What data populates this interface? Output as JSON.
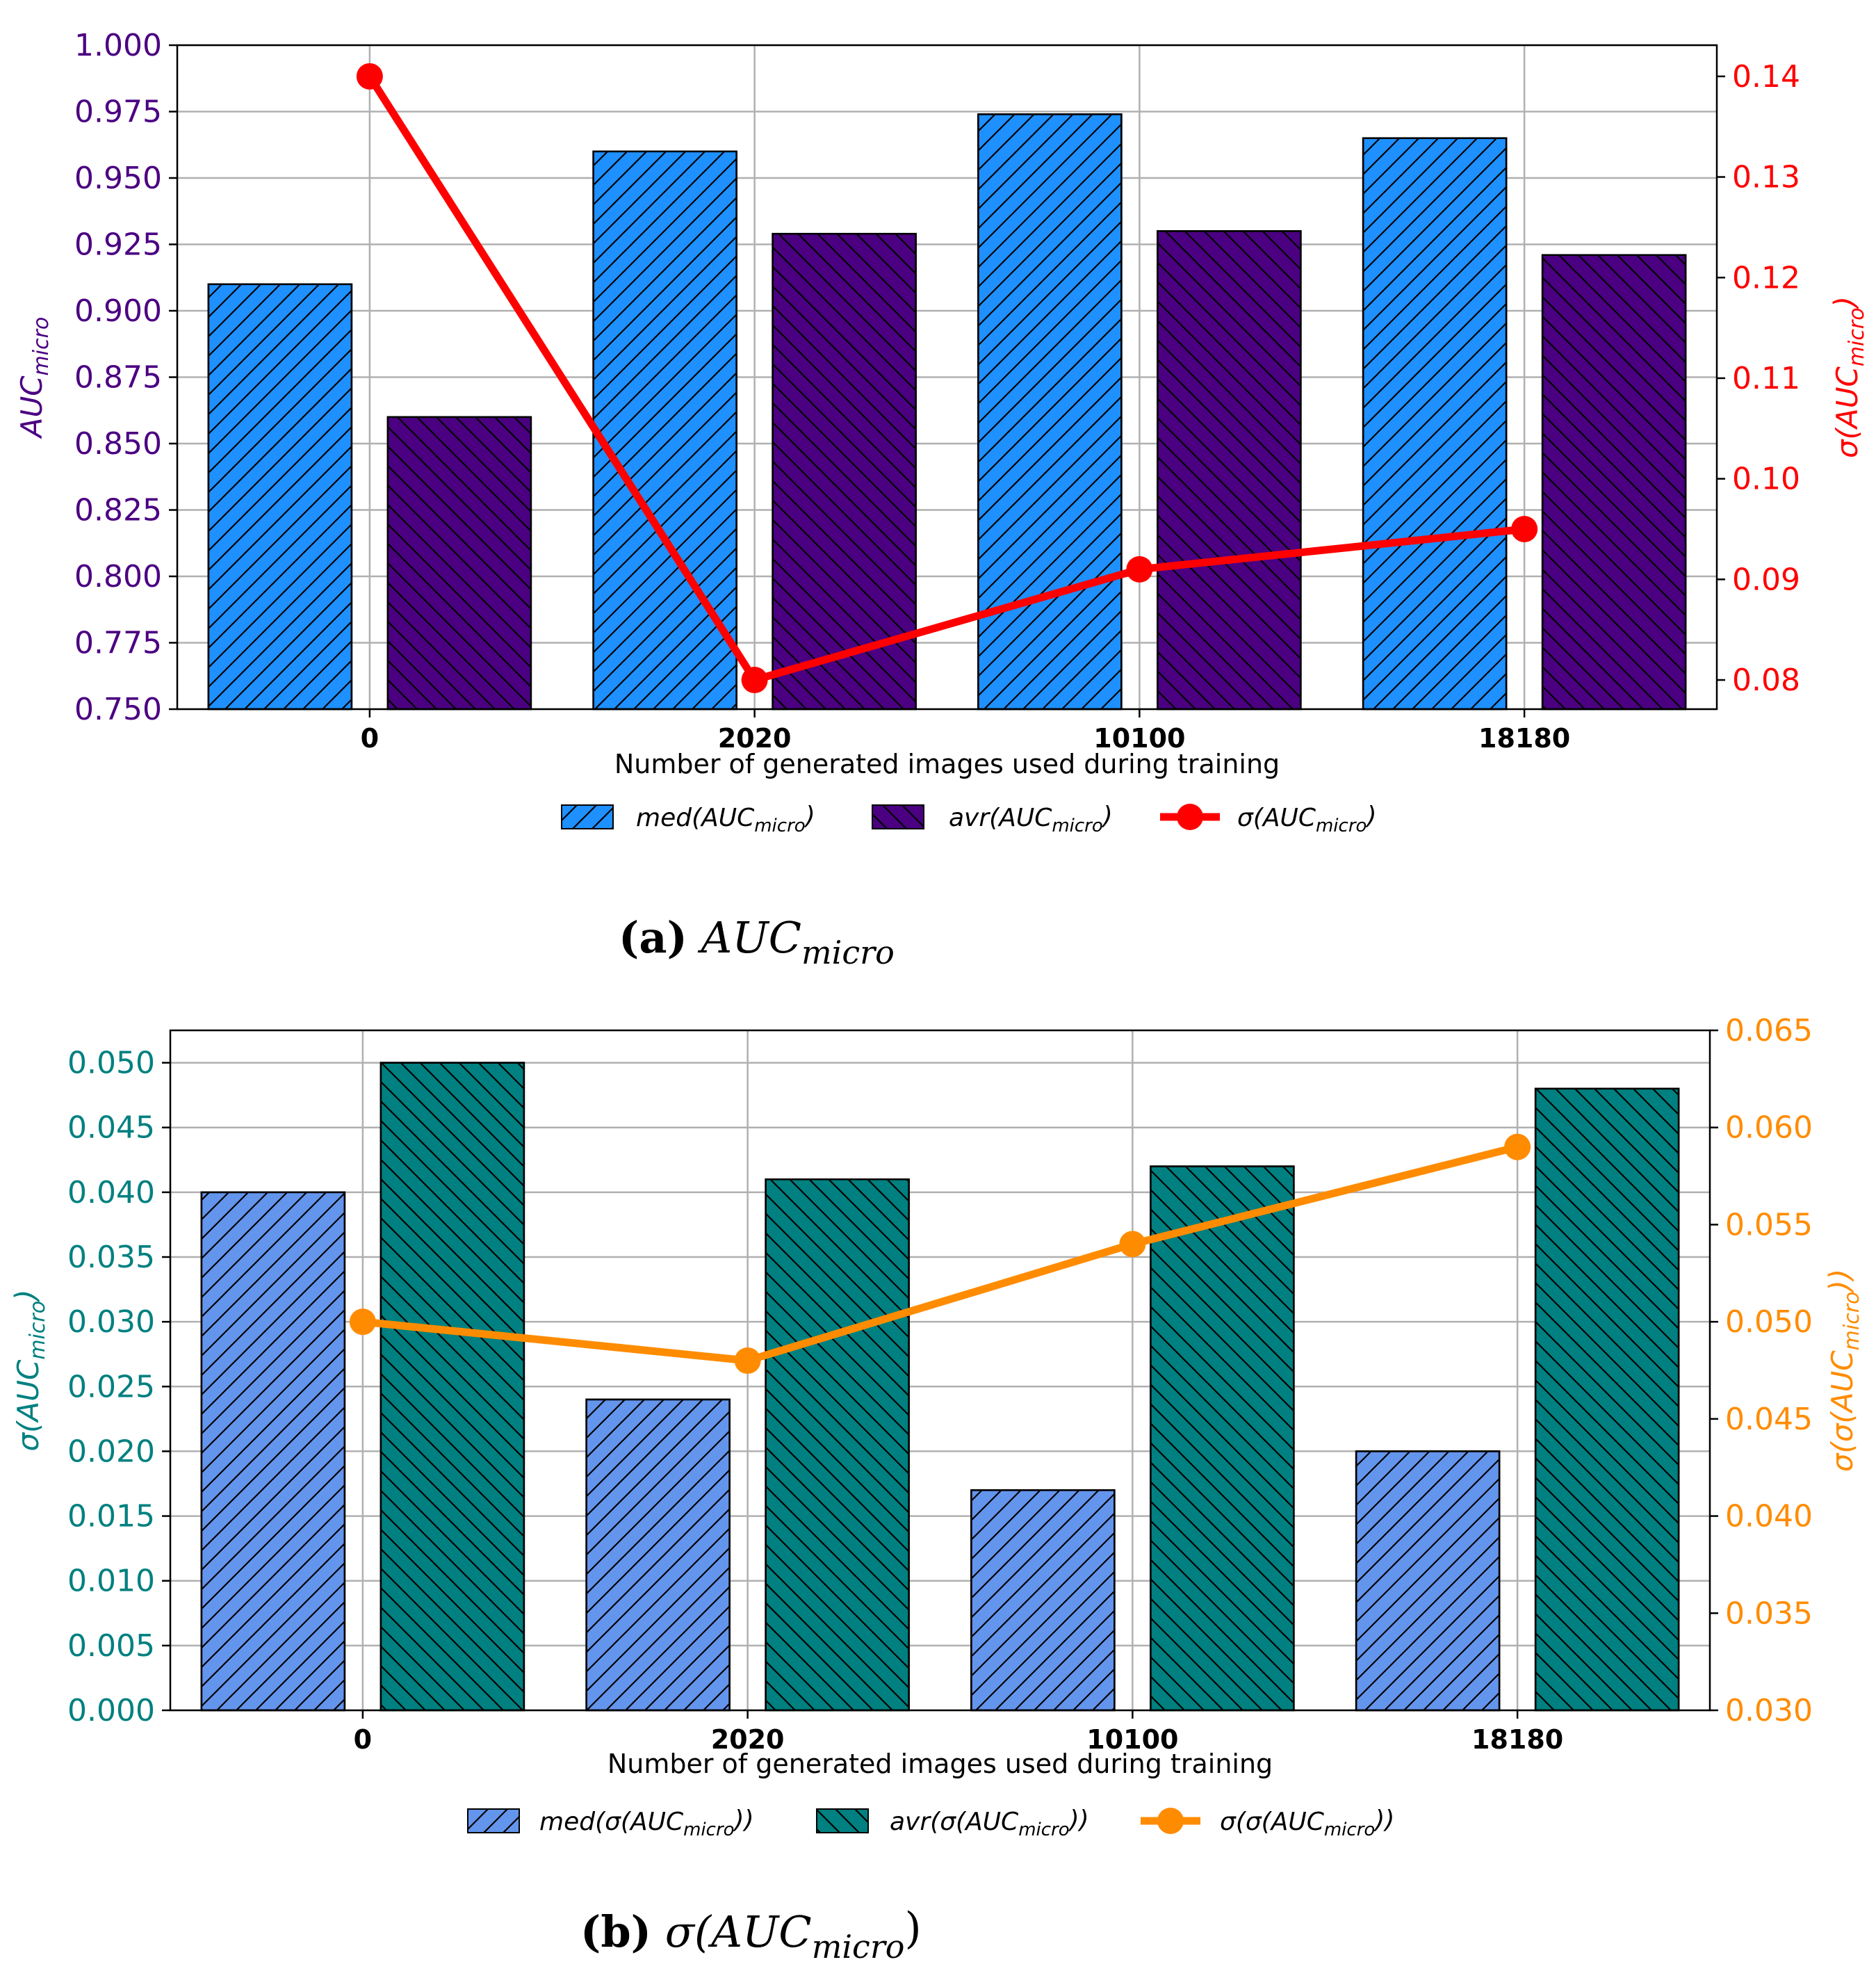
{
  "chart_data": [
    {
      "type": "bar",
      "id": "a",
      "caption_label": "(a)",
      "caption_text": "AUC",
      "caption_sub": "micro",
      "categories": [
        "0",
        "2020",
        "10100",
        "18180"
      ],
      "xlabel": "Number of generated images used during training",
      "ylabel_left": "AUC",
      "ylabel_left_sub": "micro",
      "ylabel_right": "σ(AUC",
      "ylabel_right_sub": "micro",
      "ylabel_right_close": ")",
      "left_color": "#4b0082",
      "right_color": "#ff0000",
      "ylim_left": [
        0.75,
        1.0
      ],
      "yticks_left": [
        "0.750",
        "0.775",
        "0.800",
        "0.825",
        "0.850",
        "0.875",
        "0.900",
        "0.925",
        "0.950",
        "0.975",
        "1.000"
      ],
      "ylim_right": [
        0.0771,
        0.1431
      ],
      "yticks_right": [
        "0.08",
        "0.09",
        "0.10",
        "0.11",
        "0.12",
        "0.13",
        "0.14"
      ],
      "series": [
        {
          "name": "med(AUC",
          "sub": "micro",
          "close": ")",
          "kind": "bar",
          "color": "#1e90ff",
          "hatch": "fwd",
          "values": [
            0.91,
            0.96,
            0.974,
            0.965
          ]
        },
        {
          "name": "avr(AUC",
          "sub": "micro",
          "close": ")",
          "kind": "bar",
          "color": "#4b0082",
          "hatch": "back",
          "values": [
            0.86,
            0.929,
            0.93,
            0.921
          ]
        },
        {
          "name": "σ(AUC",
          "sub": "micro",
          "close": ")",
          "kind": "line",
          "color": "#ff0000",
          "axis": "right",
          "values": [
            0.14,
            0.08,
            0.091,
            0.095
          ]
        }
      ]
    },
    {
      "type": "bar",
      "id": "b",
      "caption_label": "(b)",
      "caption_text": "σ(AUC",
      "caption_sub": "micro",
      "caption_close": ")",
      "categories": [
        "0",
        "2020",
        "10100",
        "18180"
      ],
      "xlabel": "Number of generated images used during training",
      "ylabel_left": "σ(AUC",
      "ylabel_left_sub": "micro",
      "ylabel_left_close": ")",
      "ylabel_right": "σ(σ(AUC",
      "ylabel_right_sub": "micro",
      "ylabel_right_close": "))",
      "left_color": "#008080",
      "right_color": "#ff8c00",
      "ylim_left": [
        0.0,
        0.0525
      ],
      "yticks_left": [
        "0.000",
        "0.005",
        "0.010",
        "0.015",
        "0.020",
        "0.025",
        "0.030",
        "0.035",
        "0.040",
        "0.045",
        "0.050"
      ],
      "ylim_right": [
        0.03,
        0.065
      ],
      "yticks_right": [
        "0.030",
        "0.035",
        "0.040",
        "0.045",
        "0.050",
        "0.055",
        "0.060",
        "0.065"
      ],
      "series": [
        {
          "name": "med(σ(AUC",
          "sub": "micro",
          "close": "))",
          "kind": "bar",
          "color": "#6495ed",
          "hatch": "fwd",
          "values": [
            0.04,
            0.024,
            0.017,
            0.02
          ]
        },
        {
          "name": "avr(σ(AUC",
          "sub": "micro",
          "close": "))",
          "kind": "bar",
          "color": "#008080",
          "hatch": "back",
          "values": [
            0.05,
            0.041,
            0.042,
            0.048
          ]
        },
        {
          "name": "σ(σ(AUC",
          "sub": "micro",
          "close": "))",
          "kind": "line",
          "color": "#ff8c00",
          "axis": "right",
          "values": [
            0.05,
            0.048,
            0.054,
            0.059
          ]
        }
      ]
    }
  ]
}
